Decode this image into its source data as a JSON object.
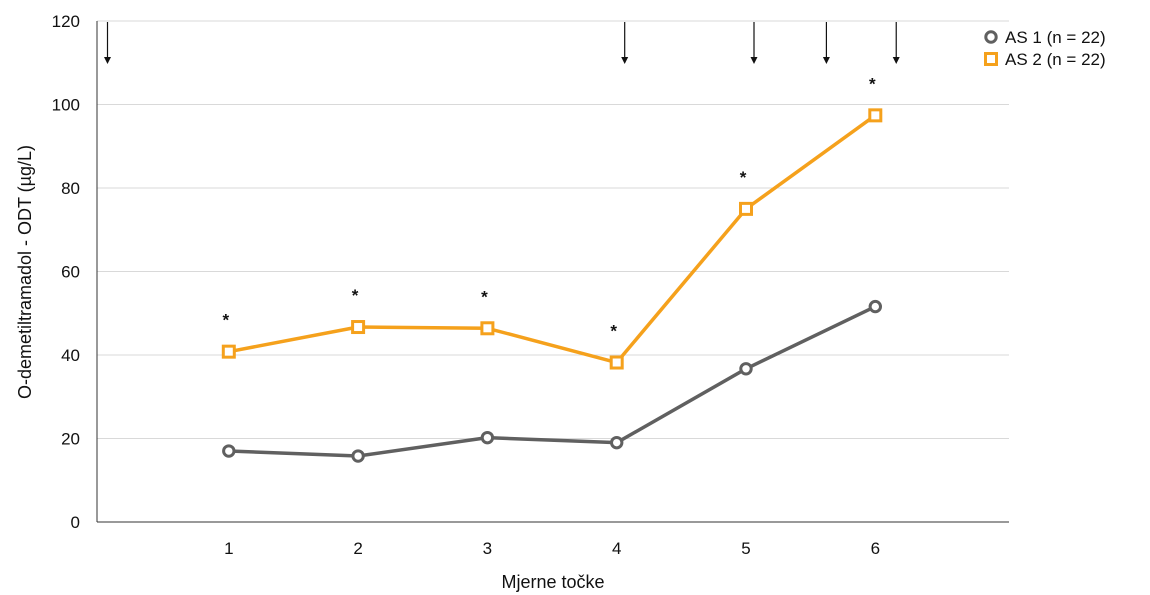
{
  "chart_data": {
    "type": "line",
    "title": "",
    "xlabel": "Mjerne točke",
    "ylabel": "O-demetiltramadol - ODT (µg/L)",
    "categories": [
      "1",
      "2",
      "3",
      "4",
      "5",
      "6"
    ],
    "ylim": [
      0,
      120
    ],
    "yticks": [
      "0",
      "20",
      "40",
      "60",
      "80",
      "100",
      "120"
    ],
    "grid": "horizontal",
    "legend_position": "top-right",
    "series": [
      {
        "name": "AS 1 (n = 22)",
        "color": "#606060",
        "marker": "circle",
        "values": [
          17.0,
          15.8,
          20.2,
          19.0,
          36.7,
          51.6
        ]
      },
      {
        "name": "AS 2 (n = 22)",
        "color": "#f5a11c",
        "marker": "square",
        "values": [
          40.8,
          46.7,
          46.4,
          38.2,
          75.0,
          97.4
        ]
      }
    ],
    "significance_marker": "*",
    "significance_categories": [
      "1",
      "2",
      "3",
      "4",
      "5",
      "6"
    ],
    "arrow_positions_x": [
      0,
      4,
      5,
      5.56,
      6.1
    ]
  }
}
